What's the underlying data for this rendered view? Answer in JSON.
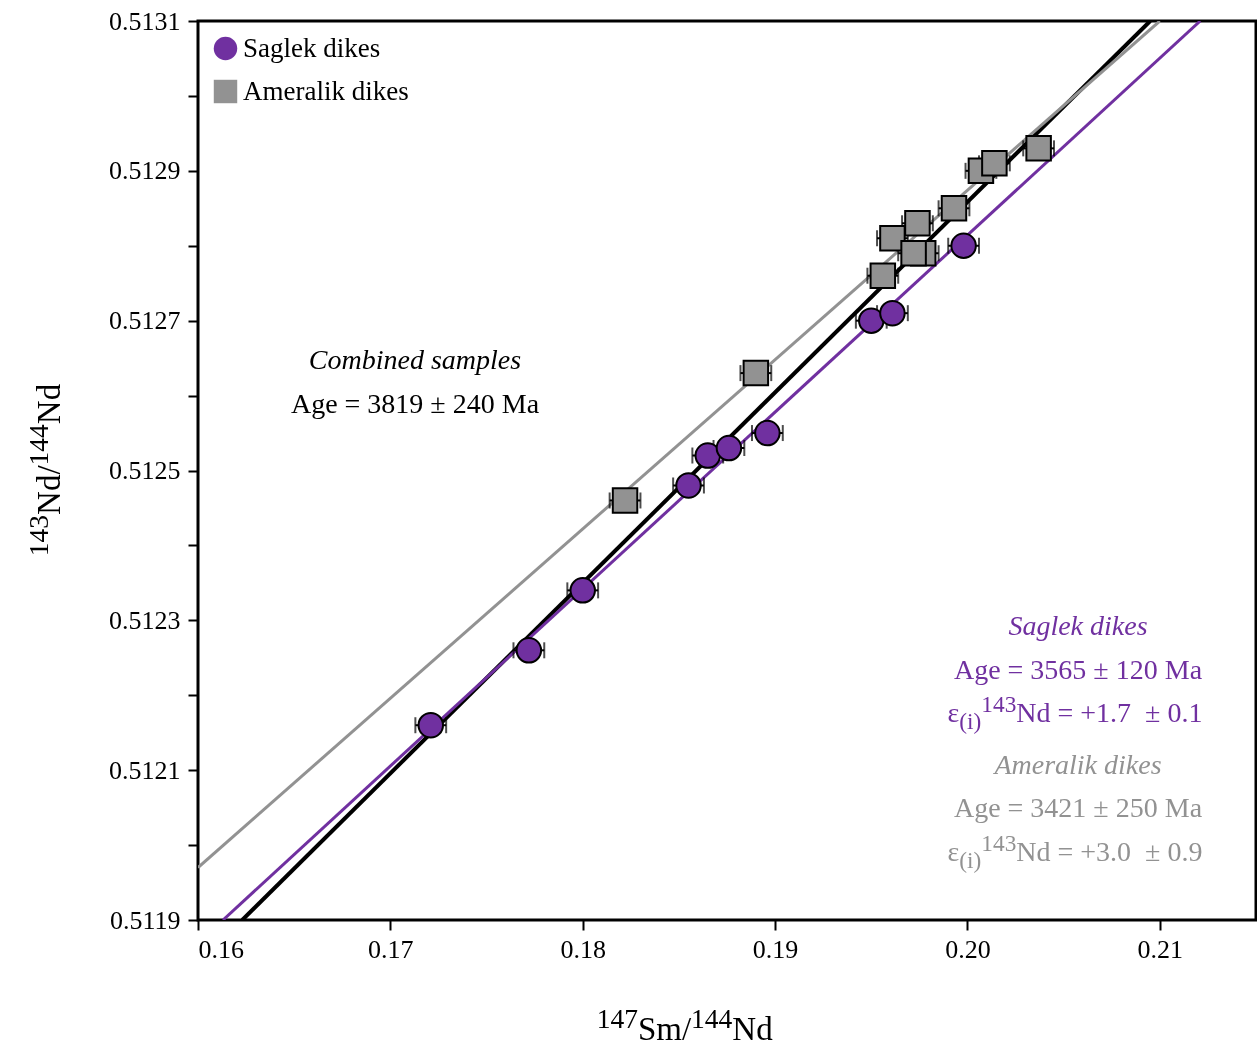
{
  "chart_data": {
    "type": "scatter",
    "xlabel": "$^{147}$Sm/$^{144}$Nd",
    "ylabel": "$^{143}$Nd/$^{144}$Nd",
    "xlim": [
      0.16,
      0.215
    ],
    "ylim": [
      0.5119,
      0.5131
    ],
    "xticks": [
      0.16,
      0.17,
      0.18,
      0.19,
      {
        "value": 0.2,
        "label": "0.20"
      },
      0.21
    ],
    "yticks": [
      0.5119,
      {
        "value": 0.512,
        "label": null
      },
      0.5121,
      {
        "value": 0.5122,
        "label": null
      },
      0.5123,
      {
        "value": 0.5124,
        "label": null
      },
      0.5125,
      {
        "value": 0.5126,
        "label": null
      },
      0.5127,
      {
        "value": 0.5128,
        "label": null
      },
      0.5129,
      {
        "value": 0.513,
        "label": null
      },
      0.5131
    ],
    "grid": false,
    "legend": "top left",
    "series": [
      {
        "name": "Saglek dikes",
        "color": "#7030a0",
        "marker": "circle",
        "x": [
          0.1721,
          0.1772,
          0.18,
          0.1855,
          0.1865,
          0.1876,
          0.1896,
          0.195,
          0.1961,
          0.1998
        ],
        "values": [
          0.51216,
          0.51226,
          0.51234,
          0.51248,
          0.51252,
          0.51253,
          0.51255,
          0.5127,
          0.51271,
          0.5128
        ],
        "xerrors": [
          0.0008,
          0.0008,
          0.0008,
          0.0008,
          0.0008,
          0.0008,
          0.0008,
          0.0008,
          0.0008,
          0.0008
        ]
      },
      {
        "name": "Ameralik dikes",
        "color": "#929292",
        "marker": "square",
        "x": [
          0.1822,
          0.189,
          0.1956,
          0.1961,
          0.1974,
          0.1977,
          0.1972,
          0.1993,
          0.2007,
          0.2014,
          0.2037
        ],
        "values": [
          0.51246,
          0.51263,
          0.51276,
          0.51281,
          0.51283,
          0.51279,
          0.51279,
          0.51285,
          0.5129,
          0.51291,
          0.51293
        ],
        "xerrors": [
          0.0008,
          0.0008,
          0.0008,
          0.0008,
          0.0008,
          0.0008,
          0.0008,
          0.0008,
          0.0008,
          0.0008,
          0.0008
        ]
      },
      {
        "type": "line",
        "color": "#000000",
        "x": [
          0.1623,
          0.2095
        ],
        "values": [
          0.5119,
          0.5131
        ]
      },
      {
        "type": "line",
        "color": "#7030a0",
        "x": [
          0.1613,
          0.2121
        ],
        "values": [
          0.5119,
          0.5131
        ]
      },
      {
        "type": "line",
        "color": "#929292",
        "x": [
          0.16,
          0.21
        ],
        "values": [
          0.51197,
          0.5131
        ]
      }
    ],
    "annotations": [
      "Combined samples",
      "Age = 3819 ± 240 Ma",
      "Saglek dikes",
      "Age = 3565 ± 120 Ma",
      "ε$_{(i)}$$^{143}$Nd = +1.7  ± 0.1",
      "Ameralik dikes",
      "Age = 3421 ± 250 Ma",
      "ε$_{(i)}$$^{143}$Nd = +3.0  ± 0.9"
    ]
  }
}
